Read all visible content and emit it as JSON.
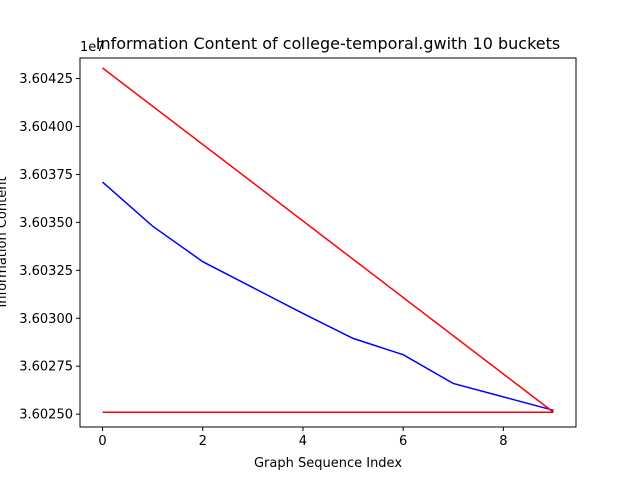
{
  "chart_data": {
    "type": "line",
    "title": "Information Content of college-temporal.gwith 10 buckets",
    "xlabel": "Graph Sequence Index",
    "ylabel": "Information Content",
    "y_offset_label": "1e7",
    "y_scale": 10000000,
    "xlim": [
      -0.45,
      9.45
    ],
    "ylim": [
      36024330,
      36043570
    ],
    "x_ticks": [
      0,
      2,
      4,
      6,
      8
    ],
    "x_tick_labels": [
      "0",
      "2",
      "4",
      "6",
      "8"
    ],
    "y_ticks": [
      36025000,
      36027500,
      36030000,
      36032500,
      36035000,
      36037500,
      36040000,
      36042500
    ],
    "y_tick_labels": [
      "3.60250",
      "3.60275",
      "3.60300",
      "3.60325",
      "3.60350",
      "3.60375",
      "3.60400",
      "3.60425"
    ],
    "grid": false,
    "series": [
      {
        "color": "#0000ff",
        "x": [
          0,
          1,
          2,
          3,
          4,
          5,
          6,
          7,
          8,
          9
        ],
        "values": [
          36037100,
          36034800,
          36032950,
          36031600,
          36030250,
          36028950,
          36028100,
          36026600,
          36025900,
          36025200
        ]
      },
      {
        "color": "#ff0000",
        "x": [
          0,
          9
        ],
        "values": [
          36043050,
          36025100
        ]
      },
      {
        "color": "#ff0000",
        "x": [
          0,
          9
        ],
        "values": [
          36025100,
          36025100
        ]
      }
    ]
  }
}
